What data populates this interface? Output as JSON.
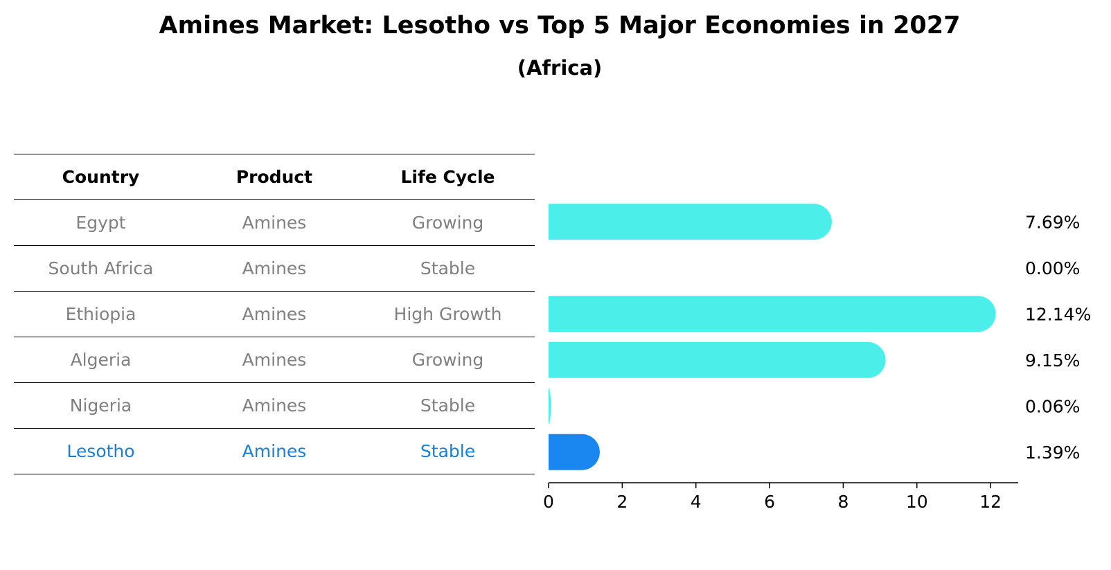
{
  "title": "Amines Market: Lesotho vs Top 5 Major Economies in 2027",
  "subtitle": "(Africa)",
  "table": {
    "headers": [
      "Country",
      "Product",
      "Life Cycle"
    ],
    "rows": [
      {
        "country": "Egypt",
        "product": "Amines",
        "life_cycle": "Growing"
      },
      {
        "country": "South Africa",
        "product": "Amines",
        "life_cycle": "Stable"
      },
      {
        "country": "Ethiopia",
        "product": "Amines",
        "life_cycle": "High Growth"
      },
      {
        "country": "Algeria",
        "product": "Amines",
        "life_cycle": "Growing"
      },
      {
        "country": "Nigeria",
        "product": "Amines",
        "life_cycle": "Stable"
      },
      {
        "country": "Lesotho",
        "product": "Amines",
        "life_cycle": "Stable"
      }
    ]
  },
  "colors": {
    "bar": "#4ceeea",
    "highlight": "#1a87f0",
    "muted_text": "#808080",
    "highlight_text": "#1a7fd6"
  },
  "chart_data": {
    "type": "bar",
    "orientation": "horizontal",
    "title": "Amines Market: Lesotho vs Top 5 Major Economies in 2027",
    "subtitle": "(Africa)",
    "categories": [
      "Egypt",
      "South Africa",
      "Ethiopia",
      "Algeria",
      "Nigeria",
      "Lesotho"
    ],
    "values": [
      7.69,
      0.0,
      12.14,
      9.15,
      0.06,
      1.39
    ],
    "value_labels": [
      "7.69%",
      "0.00%",
      "12.14%",
      "9.15%",
      "0.06%",
      "1.39%"
    ],
    "highlight": "Lesotho",
    "xlim": [
      0,
      12.75
    ],
    "xticks": [
      0,
      2,
      4,
      6,
      8,
      10,
      12
    ],
    "xlabel": "",
    "ylabel": "",
    "grid": false
  }
}
